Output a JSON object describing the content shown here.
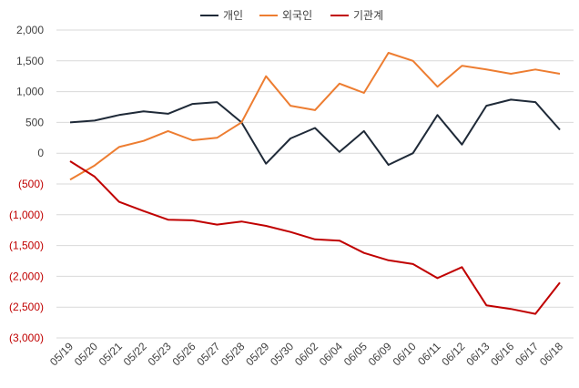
{
  "chart_data": {
    "type": "line",
    "title": "",
    "xlabel": "",
    "ylabel": "",
    "x": [
      "05/19",
      "05/20",
      "05/21",
      "05/22",
      "05/23",
      "05/26",
      "05/27",
      "05/28",
      "05/29",
      "05/30",
      "06/02",
      "06/04",
      "06/05",
      "06/09",
      "06/10",
      "06/11",
      "06/12",
      "06/13",
      "06/16",
      "06/17",
      "06/18"
    ],
    "ylim": [
      -3000,
      2000
    ],
    "yticks": [
      2000,
      1500,
      1000,
      500,
      0,
      -500,
      -1000,
      -1500,
      -2000,
      -2500,
      -3000
    ],
    "ytick_labels": [
      "2,000",
      "1,500",
      "1,000",
      "500",
      "0",
      "(500)",
      "(1,000)",
      "(1,500)",
      "(2,000)",
      "(2,500)",
      "(3,000)"
    ],
    "negative_tick_color": "#c00000",
    "positive_tick_color": "#404040",
    "grid": true,
    "legend_position": "top-center",
    "series": [
      {
        "name": "개인",
        "color": "#1f2a38",
        "values": [
          500,
          530,
          620,
          680,
          640,
          800,
          830,
          500,
          -170,
          240,
          410,
          20,
          360,
          -190,
          0,
          620,
          140,
          770,
          870,
          830,
          380
        ]
      },
      {
        "name": "외국인",
        "color": "#ed7d31",
        "values": [
          -430,
          -200,
          100,
          200,
          360,
          210,
          250,
          500,
          1250,
          770,
          700,
          1130,
          980,
          1630,
          1500,
          1080,
          1420,
          1360,
          1290,
          1360,
          1290
        ]
      },
      {
        "name": "기관계",
        "color": "#c00000",
        "values": [
          -130,
          -380,
          -790,
          -940,
          -1080,
          -1090,
          -1160,
          -1110,
          -1180,
          -1280,
          -1400,
          -1420,
          -1620,
          -1740,
          -1800,
          -2030,
          -1850,
          -2470,
          -2530,
          -2610,
          -2100
        ]
      }
    ]
  }
}
